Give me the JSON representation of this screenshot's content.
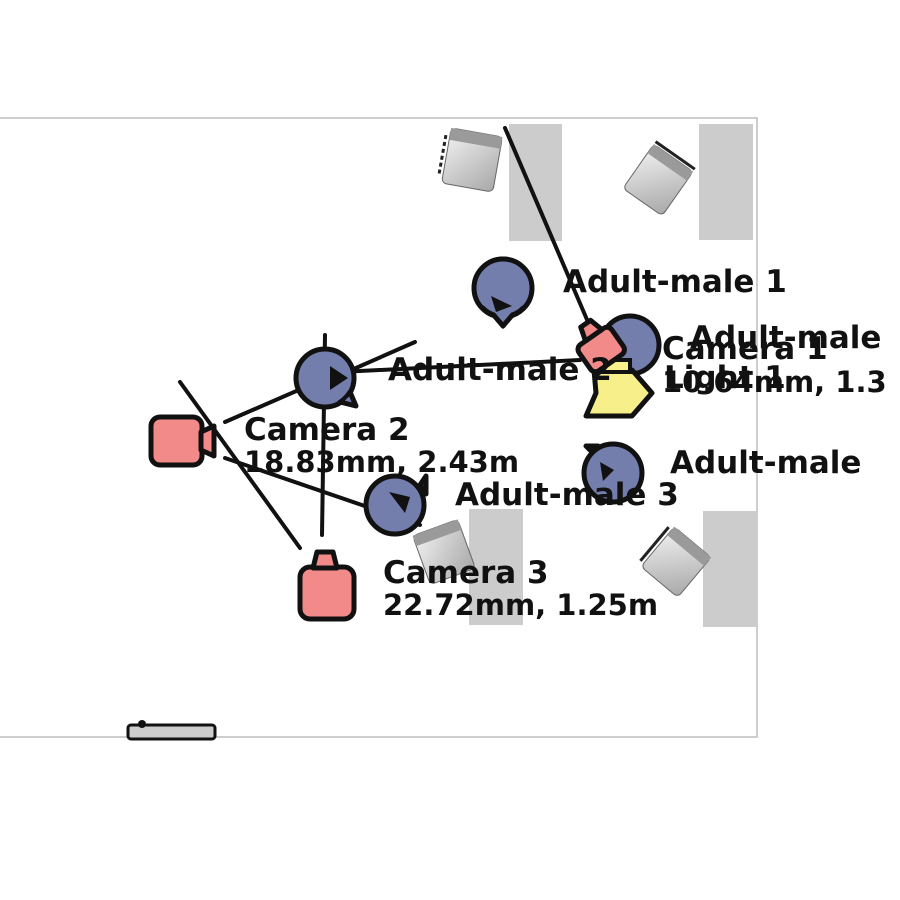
{
  "diagram": {
    "colors": {
      "room_border": "#bdbdbd",
      "furniture": "#cccccc",
      "person": "#737ead",
      "camera": "#f28a8a",
      "light": "#f7f08a",
      "outline": "#111111"
    },
    "people": [
      {
        "id": "p1",
        "label": "Adult-male 1",
        "icon": "person-marker-icon"
      },
      {
        "id": "p2",
        "label": "Adult-male 2",
        "icon": "person-marker-icon"
      },
      {
        "id": "p3",
        "label": "Adult-male 3",
        "icon": "person-marker-icon"
      },
      {
        "id": "p4",
        "label": "Adult-male",
        "icon": "person-marker-icon"
      },
      {
        "id": "p5",
        "label": "Adult-male",
        "icon": "person-marker-icon"
      }
    ],
    "cameras": [
      {
        "id": "c1",
        "name": "Camera 1",
        "specs": "10.64mm, 1.3",
        "icon": "camera-icon"
      },
      {
        "id": "c2",
        "name": "Camera 2",
        "specs": "18.83mm, 2.43m",
        "icon": "camera-icon"
      },
      {
        "id": "c3",
        "name": "Camera 3",
        "specs": "22.72mm, 1.25m",
        "icon": "camera-icon"
      }
    ],
    "lights": [
      {
        "id": "l1",
        "label": "Light 1",
        "icon": "light-icon"
      }
    ]
  }
}
